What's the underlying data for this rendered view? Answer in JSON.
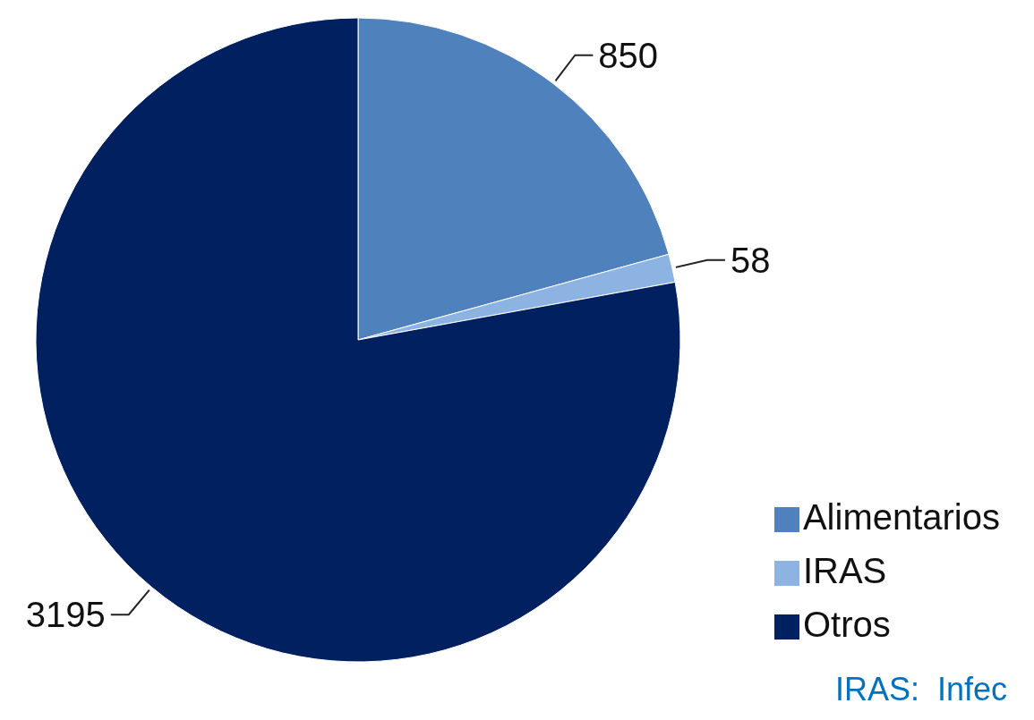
{
  "chart_data": {
    "type": "pie",
    "categories": [
      "Alimentarios",
      "IRAS",
      "Otros"
    ],
    "values": [
      850,
      58,
      3195
    ],
    "colors": [
      "#4f81bd",
      "#8db3e2",
      "#002060"
    ],
    "data_labels": true,
    "legend": "bottom right",
    "annotations": [
      "IRAS:  Infec"
    ]
  }
}
